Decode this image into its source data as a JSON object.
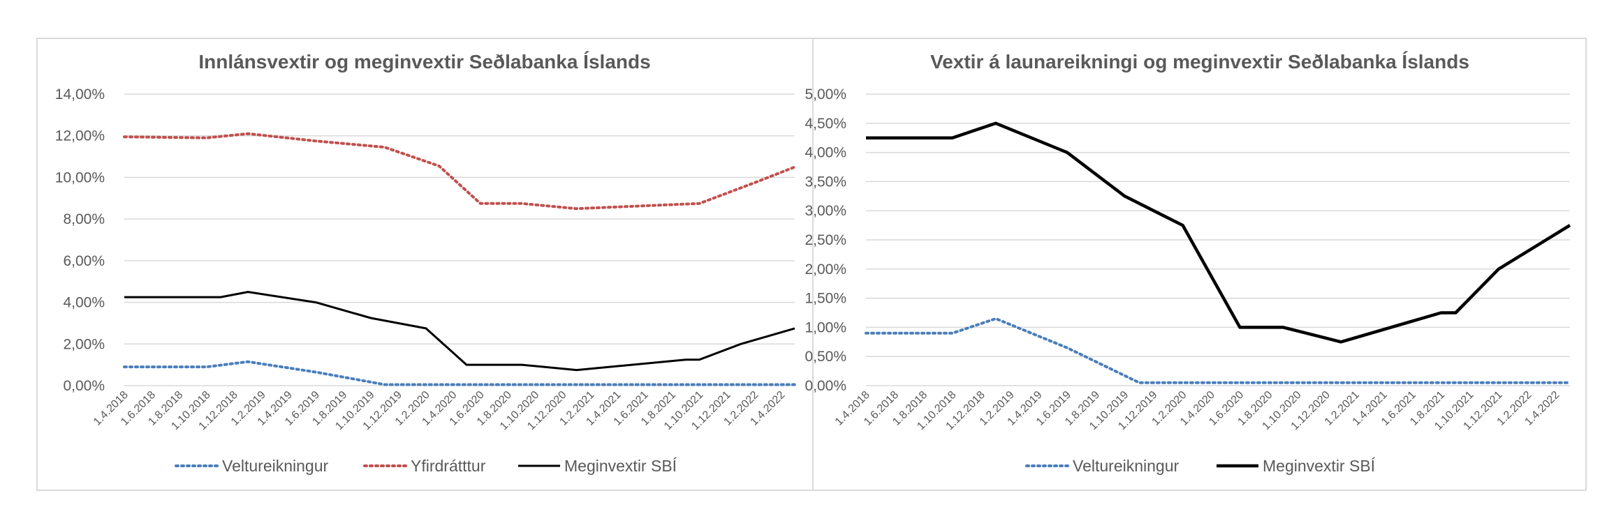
{
  "x_dates": [
    "1.4.2018",
    "1.6.2018",
    "1.8.2018",
    "1.10.2018",
    "1.12.2018",
    "1.2.2019",
    "1.4.2019",
    "1.6.2019",
    "1.8.2019",
    "1.10.2019",
    "1.12.2019",
    "1.2.2020",
    "1.4.2020",
    "1.6.2020",
    "1.8.2020",
    "1.10.2020",
    "1.12.2020",
    "1.2.2021",
    "1.4.2021",
    "1.6.2021",
    "1.8.2021",
    "1.10.2021",
    "1.12.2021",
    "1.2.2022",
    "1.4.2022"
  ],
  "chart_data": [
    {
      "type": "line",
      "title": "Innlánsvextir og meginvextir Seðlabanka Íslands",
      "xlabel": "",
      "ylabel": "",
      "ylim": [
        0,
        14
      ],
      "y_ticks": [
        "0,00%",
        "2,00%",
        "4,00%",
        "6,00%",
        "8,00%",
        "10,00%",
        "12,00%",
        "14,00%"
      ],
      "grid": true,
      "legend_position": "bottom",
      "series": [
        {
          "name": "Veltureikningur",
          "color": "#4a7ebb",
          "style": "dotted",
          "points": [
            [
              "2018-04-01",
              0.9
            ],
            [
              "2018-10-01",
              0.9
            ],
            [
              "2019-01-01",
              1.15
            ],
            [
              "2019-06-01",
              0.65
            ],
            [
              "2019-11-01",
              0.05
            ],
            [
              "2022-05-01",
              0.05
            ]
          ]
        },
        {
          "name": "Yfirdrátttur",
          "color": "#c0504d",
          "style": "dotted",
          "points": [
            [
              "2018-04-01",
              11.95
            ],
            [
              "2018-10-01",
              11.9
            ],
            [
              "2019-01-01",
              12.1
            ],
            [
              "2019-06-01",
              11.75
            ],
            [
              "2019-11-01",
              11.45
            ],
            [
              "2020-03-01",
              10.55
            ],
            [
              "2020-06-01",
              8.75
            ],
            [
              "2020-09-01",
              8.75
            ],
            [
              "2021-01-01",
              8.5
            ],
            [
              "2021-10-01",
              8.75
            ],
            [
              "2022-02-01",
              9.75
            ],
            [
              "2022-05-01",
              10.5
            ]
          ]
        },
        {
          "name": "Meginvextir SBÍ",
          "color": "#000000",
          "style": "solid",
          "points": [
            [
              "2018-04-01",
              4.25
            ],
            [
              "2018-11-01",
              4.25
            ],
            [
              "2019-01-01",
              4.5
            ],
            [
              "2019-06-01",
              4.0
            ],
            [
              "2019-10-01",
              3.25
            ],
            [
              "2020-02-01",
              2.75
            ],
            [
              "2020-05-01",
              1.0
            ],
            [
              "2020-09-01",
              1.0
            ],
            [
              "2021-01-01",
              0.75
            ],
            [
              "2021-09-01",
              1.25
            ],
            [
              "2021-10-01",
              1.25
            ],
            [
              "2022-01-01",
              2.0
            ],
            [
              "2022-05-01",
              2.75
            ]
          ]
        }
      ]
    },
    {
      "type": "line",
      "title": "Vextir á launareikningi og meginvextir Seðlabanka Íslands",
      "xlabel": "",
      "ylabel": "",
      "ylim": [
        0,
        5
      ],
      "y_ticks": [
        "0,00%",
        "0,50%",
        "1,00%",
        "1,50%",
        "2,00%",
        "2,50%",
        "3,00%",
        "3,50%",
        "4,00%",
        "4,50%",
        "5,00%"
      ],
      "grid": true,
      "legend_position": "bottom",
      "series": [
        {
          "name": "Veltureikningur",
          "color": "#4a7ebb",
          "style": "dotted",
          "points": [
            [
              "2018-04-01",
              0.9
            ],
            [
              "2018-10-01",
              0.9
            ],
            [
              "2019-01-01",
              1.15
            ],
            [
              "2019-06-01",
              0.65
            ],
            [
              "2019-11-01",
              0.05
            ],
            [
              "2022-05-01",
              0.05
            ]
          ]
        },
        {
          "name": "Meginvextir SBÍ",
          "color": "#000000",
          "style": "solid",
          "points": [
            [
              "2018-04-01",
              4.25
            ],
            [
              "2018-10-01",
              4.25
            ],
            [
              "2019-01-01",
              4.5
            ],
            [
              "2019-06-01",
              4.0
            ],
            [
              "2019-10-01",
              3.25
            ],
            [
              "2020-02-01",
              2.75
            ],
            [
              "2020-06-01",
              1.0
            ],
            [
              "2020-09-01",
              1.0
            ],
            [
              "2021-01-01",
              0.75
            ],
            [
              "2021-08-01",
              1.25
            ],
            [
              "2021-09-01",
              1.25
            ],
            [
              "2021-12-01",
              2.0
            ],
            [
              "2022-05-01",
              2.75
            ]
          ]
        }
      ]
    }
  ]
}
